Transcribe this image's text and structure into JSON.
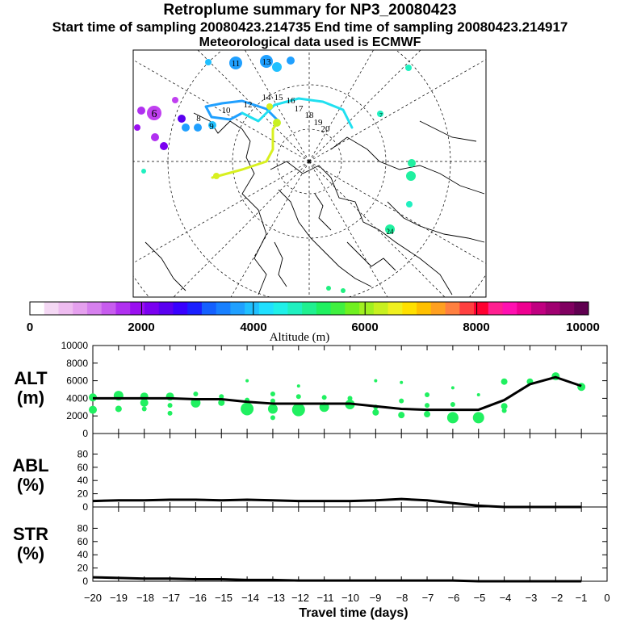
{
  "titles": {
    "main": "Retroplume summary for NP3_20080423",
    "times": "Start time of sampling 20080423.214735     End time of sampling 20080423.214917",
    "met": "Meteorological data used is ECMWF"
  },
  "colorbar": {
    "ticks": [
      "0",
      "2000",
      "4000",
      "6000",
      "8000",
      "10000"
    ],
    "label": "Altitude (m)",
    "colors": [
      "#ffffff",
      "#f4d8f4",
      "#eebcf0",
      "#e5a0ee",
      "#d680ee",
      "#c75cee",
      "#b030f0",
      "#9a10f0",
      "#7a00f0",
      "#5a00f0",
      "#3800ff",
      "#1a20ff",
      "#1460ff",
      "#1880ff",
      "#20a0ff",
      "#20c0ff",
      "#20e0ff",
      "#20f0e8",
      "#20f0c0",
      "#20f090",
      "#20f060",
      "#40f040",
      "#70f020",
      "#a0f020",
      "#c8f020",
      "#f0f020",
      "#ffe000",
      "#ffc000",
      "#ffa020",
      "#ff8040",
      "#ff4040",
      "#ff0030",
      "#ff2090",
      "#ff10b0",
      "#ee0090",
      "#c00080",
      "#a00070",
      "#800060",
      "#600050"
    ]
  },
  "map": {
    "point_labels": [
      "6",
      "7",
      "8",
      "9",
      "10",
      "11",
      "12",
      "13",
      "14",
      "15",
      "16",
      "17",
      "18",
      "19",
      "20",
      "24"
    ]
  },
  "chart_data": [
    {
      "type": "line",
      "name": "ALT",
      "ylabel": "ALT\n(m)",
      "ylabel_lines": [
        "ALT",
        "(m)"
      ],
      "ylim": [
        0,
        10000
      ],
      "yticks": [
        "0",
        "2000",
        "4000",
        "6000",
        "8000",
        "10000"
      ],
      "x": [
        -20,
        -19,
        -18,
        -17,
        -16,
        -15,
        -14,
        -13,
        -12,
        -11,
        -10,
        -9,
        -8,
        -7,
        -6,
        -5,
        -4,
        -3,
        -2,
        -1
      ],
      "values": [
        4000,
        4000,
        4000,
        4000,
        3900,
        3900,
        3600,
        3400,
        3400,
        3400,
        3400,
        3100,
        2800,
        2700,
        2700,
        2700,
        3800,
        5600,
        6400,
        5400
      ],
      "scatter_color": "#20f060",
      "scatter": [
        {
          "x": -20,
          "y": 4100,
          "s": 5
        },
        {
          "x": -20,
          "y": 2700,
          "s": 5
        },
        {
          "x": -19,
          "y": 4300,
          "s": 6
        },
        {
          "x": -19,
          "y": 2800,
          "s": 4
        },
        {
          "x": -18,
          "y": 4200,
          "s": 5
        },
        {
          "x": -18,
          "y": 3500,
          "s": 5
        },
        {
          "x": -18,
          "y": 2800,
          "s": 3
        },
        {
          "x": -17,
          "y": 4200,
          "s": 5
        },
        {
          "x": -17,
          "y": 3200,
          "s": 3
        },
        {
          "x": -17,
          "y": 2300,
          "s": 3
        },
        {
          "x": -16,
          "y": 3500,
          "s": 6
        },
        {
          "x": -16,
          "y": 4500,
          "s": 3
        },
        {
          "x": -15,
          "y": 3500,
          "s": 4
        },
        {
          "x": -15,
          "y": 4200,
          "s": 3
        },
        {
          "x": -14,
          "y": 2800,
          "s": 8
        },
        {
          "x": -14,
          "y": 3800,
          "s": 3
        },
        {
          "x": -14,
          "y": 6000,
          "s": 2
        },
        {
          "x": -13,
          "y": 2800,
          "s": 6
        },
        {
          "x": -13,
          "y": 4500,
          "s": 3
        },
        {
          "x": -13,
          "y": 3700,
          "s": 3
        },
        {
          "x": -13,
          "y": 1800,
          "s": 3
        },
        {
          "x": -12,
          "y": 2700,
          "s": 8
        },
        {
          "x": -12,
          "y": 4200,
          "s": 3
        },
        {
          "x": -12,
          "y": 5400,
          "s": 2
        },
        {
          "x": -11,
          "y": 3000,
          "s": 6
        },
        {
          "x": -11,
          "y": 4100,
          "s": 3
        },
        {
          "x": -10,
          "y": 3300,
          "s": 6
        },
        {
          "x": -10,
          "y": 4000,
          "s": 3
        },
        {
          "x": -9,
          "y": 2400,
          "s": 4
        },
        {
          "x": -9,
          "y": 6000,
          "s": 2
        },
        {
          "x": -9,
          "y": 3000,
          "s": 3
        },
        {
          "x": -8,
          "y": 2100,
          "s": 4
        },
        {
          "x": -8,
          "y": 5800,
          "s": 2
        },
        {
          "x": -8,
          "y": 3700,
          "s": 3
        },
        {
          "x": -7,
          "y": 2200,
          "s": 4
        },
        {
          "x": -7,
          "y": 4400,
          "s": 3
        },
        {
          "x": -7,
          "y": 3200,
          "s": 3
        },
        {
          "x": -6,
          "y": 1800,
          "s": 7
        },
        {
          "x": -6,
          "y": 3300,
          "s": 3
        },
        {
          "x": -6,
          "y": 5200,
          "s": 2
        },
        {
          "x": -5,
          "y": 1800,
          "s": 7
        },
        {
          "x": -5,
          "y": 4400,
          "s": 2
        },
        {
          "x": -4,
          "y": 5900,
          "s": 4
        },
        {
          "x": -4,
          "y": 3100,
          "s": 4
        },
        {
          "x": -4,
          "y": 2600,
          "s": 3
        },
        {
          "x": -3,
          "y": 5900,
          "s": 4
        },
        {
          "x": -2,
          "y": 6500,
          "s": 5
        },
        {
          "x": -1,
          "y": 5300,
          "s": 5
        }
      ]
    },
    {
      "type": "line",
      "name": "ABL",
      "ylabel": "ABL\n(%)",
      "ylabel_lines": [
        "ABL",
        "(%)"
      ],
      "ylim": [
        0,
        100
      ],
      "yticks": [
        "0",
        "20",
        "40",
        "60",
        "80"
      ],
      "x": [
        -20,
        -19,
        -18,
        -17,
        -16,
        -15,
        -14,
        -13,
        -12,
        -11,
        -10,
        -9,
        -8,
        -7,
        -6,
        -5,
        -4,
        -3,
        -2,
        -1
      ],
      "values": [
        9,
        10,
        10,
        11,
        11,
        10,
        11,
        10,
        9,
        9,
        9,
        10,
        12,
        10,
        6,
        2,
        0,
        0,
        0,
        0
      ]
    },
    {
      "type": "line",
      "name": "STR",
      "ylabel": "STR\n(%)",
      "ylabel_lines": [
        "STR",
        "(%)"
      ],
      "ylim": [
        0,
        100
      ],
      "yticks": [
        "0",
        "20",
        "40",
        "60",
        "80"
      ],
      "x": [
        -20,
        -19,
        -18,
        -17,
        -16,
        -15,
        -14,
        -13,
        -12,
        -11,
        -10,
        -9,
        -8,
        -7,
        -6,
        -5,
        -4,
        -3,
        -2,
        -1
      ],
      "values": [
        6,
        5,
        4,
        4,
        3,
        3,
        2,
        2,
        1,
        1,
        1,
        1,
        1,
        1,
        1,
        0,
        0,
        0,
        0,
        0
      ]
    }
  ],
  "xaxis": {
    "ticks": [
      "−20",
      "−19",
      "−18",
      "−17",
      "−16",
      "−15",
      "−14",
      "−13",
      "−12",
      "−11",
      "−10",
      "−9",
      "−8",
      "−7",
      "−6",
      "−5",
      "−4",
      "−3",
      "−2",
      "−1",
      "0"
    ],
    "label": "Travel time (days)"
  }
}
